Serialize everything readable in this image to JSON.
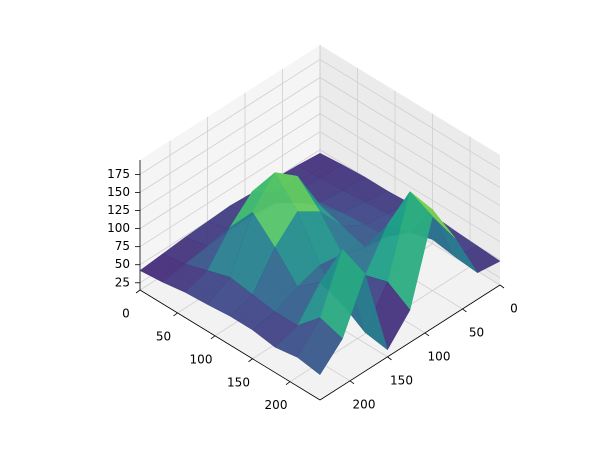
{
  "chart_data": {
    "type": "surface",
    "colormap": "viridis",
    "x": [
      0,
      30,
      60,
      90,
      120,
      150,
      180,
      210,
      240
    ],
    "y": [
      0,
      30,
      60,
      90,
      120,
      150,
      180,
      210,
      240
    ],
    "z": [
      [
        45,
        48,
        50,
        50,
        52,
        50,
        48,
        45,
        42
      ],
      [
        48,
        50,
        52,
        55,
        58,
        58,
        55,
        50,
        45
      ],
      [
        50,
        52,
        55,
        75,
        110,
        130,
        100,
        60,
        50
      ],
      [
        50,
        55,
        60,
        90,
        150,
        175,
        140,
        70,
        52
      ],
      [
        52,
        58,
        62,
        80,
        120,
        140,
        110,
        65,
        55
      ],
      [
        55,
        60,
        65,
        70,
        80,
        85,
        75,
        60,
        55
      ],
      [
        52,
        60,
        90,
        120,
        70,
        50,
        100,
        60,
        50
      ],
      [
        50,
        55,
        140,
        185,
        80,
        30,
        165,
        90,
        55
      ],
      [
        48,
        52,
        120,
        170,
        60,
        25,
        150,
        80,
        50
      ]
    ],
    "xlim": [
      0,
      240
    ],
    "ylim": [
      0,
      240
    ],
    "zlim": [
      15,
      195
    ],
    "xticks": [
      0,
      50,
      100,
      150,
      200
    ],
    "yticks": [
      0,
      50,
      100,
      150,
      200
    ],
    "zticks": [
      25,
      50,
      75,
      100,
      125,
      150,
      175
    ],
    "grid": true
  }
}
